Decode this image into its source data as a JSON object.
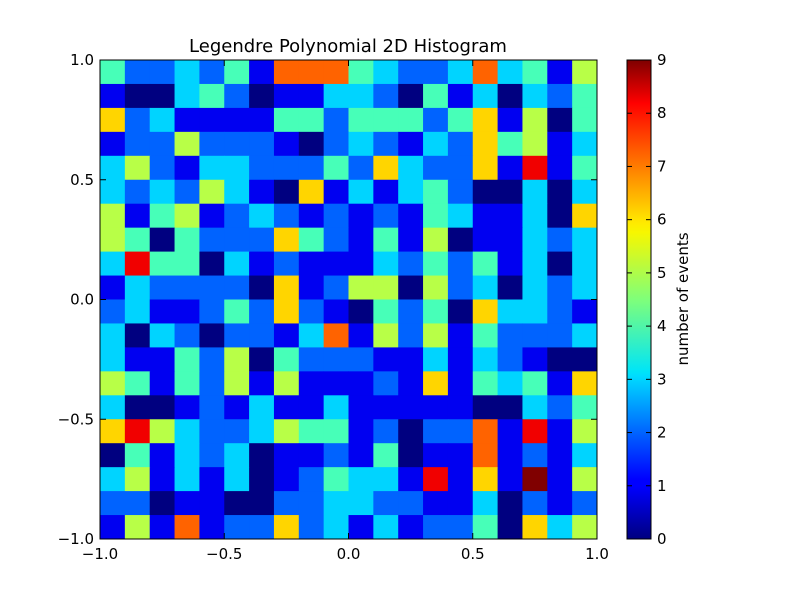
{
  "chart_data": {
    "type": "heatmap",
    "title": "Legendre Polynomial 2D Histogram",
    "xlabel": "",
    "ylabel": "",
    "xlim": [
      -1.0,
      1.0
    ],
    "ylim": [
      -1.0,
      1.0
    ],
    "x_ticks": [
      -1.0,
      -0.5,
      0.0,
      0.5,
      1.0
    ],
    "x_tick_labels": [
      "−1.0",
      "−0.5",
      "0.0",
      "0.5",
      "1.0"
    ],
    "y_ticks": [
      -1.0,
      -0.5,
      0.0,
      0.5,
      1.0
    ],
    "y_tick_labels": [
      "−1.0",
      "−0.5",
      "0.0",
      "0.5",
      "1.0"
    ],
    "bins": [
      20,
      20
    ],
    "colormap": "jet",
    "colorbar": {
      "label": "number of events",
      "range": [
        0,
        9
      ],
      "ticks": [
        0,
        1,
        2,
        3,
        4,
        5,
        6,
        7,
        8,
        9
      ],
      "tick_labels": [
        "0",
        "1",
        "2",
        "3",
        "4",
        "5",
        "6",
        "7",
        "8",
        "9"
      ]
    },
    "counts_row_order": "top-to-bottom (y from 1.0 down to -1.0), columns left-to-right (x from -1.0 to 1.0)",
    "counts": [
      [
        4,
        2,
        2,
        3,
        2,
        4,
        1,
        7,
        7,
        7,
        4,
        3,
        2,
        2,
        3,
        7,
        3,
        4,
        1,
        5
      ],
      [
        1,
        0,
        0,
        3,
        4,
        2,
        0,
        1,
        1,
        3,
        3,
        2,
        0,
        4,
        1,
        3,
        0,
        3,
        2,
        4
      ],
      [
        6,
        2,
        3,
        1,
        1,
        1,
        1,
        4,
        4,
        2,
        4,
        4,
        4,
        2,
        4,
        6,
        1,
        5,
        0,
        4
      ],
      [
        1,
        2,
        2,
        5,
        2,
        2,
        2,
        1,
        0,
        2,
        3,
        2,
        1,
        3,
        2,
        6,
        4,
        5,
        1,
        3
      ],
      [
        3,
        5,
        2,
        1,
        3,
        3,
        2,
        2,
        2,
        4,
        2,
        6,
        3,
        2,
        2,
        6,
        1,
        8,
        1,
        4
      ],
      [
        3,
        2,
        3,
        2,
        5,
        3,
        1,
        0,
        6,
        1,
        3,
        1,
        3,
        4,
        2,
        0,
        0,
        3,
        0,
        3
      ],
      [
        5,
        1,
        4,
        5,
        1,
        2,
        3,
        2,
        1,
        2,
        1,
        2,
        1,
        4,
        3,
        1,
        1,
        3,
        0,
        6
      ],
      [
        5,
        4,
        0,
        4,
        2,
        2,
        2,
        6,
        4,
        2,
        1,
        4,
        1,
        5,
        0,
        1,
        1,
        3,
        2,
        3
      ],
      [
        3,
        8,
        4,
        4,
        0,
        3,
        1,
        2,
        1,
        1,
        1,
        3,
        2,
        4,
        2,
        4,
        1,
        3,
        0,
        3
      ],
      [
        1,
        3,
        2,
        2,
        2,
        2,
        0,
        6,
        1,
        2,
        5,
        5,
        0,
        5,
        2,
        3,
        0,
        3,
        2,
        3
      ],
      [
        2,
        3,
        1,
        1,
        2,
        4,
        2,
        6,
        2,
        1,
        0,
        4,
        2,
        4,
        0,
        6,
        3,
        3,
        2,
        1
      ],
      [
        3,
        0,
        3,
        2,
        0,
        2,
        2,
        1,
        3,
        7,
        1,
        5,
        2,
        5,
        1,
        4,
        2,
        2,
        2,
        3
      ],
      [
        3,
        1,
        1,
        4,
        2,
        5,
        0,
        4,
        2,
        2,
        2,
        1,
        1,
        3,
        1,
        3,
        2,
        1,
        0,
        0
      ],
      [
        5,
        4,
        1,
        4,
        2,
        5,
        1,
        5,
        1,
        1,
        1,
        2,
        1,
        6,
        1,
        4,
        3,
        4,
        1,
        6
      ],
      [
        3,
        0,
        0,
        1,
        2,
        1,
        3,
        1,
        1,
        3,
        1,
        1,
        1,
        1,
        1,
        0,
        0,
        3,
        2,
        4
      ],
      [
        6,
        8,
        5,
        3,
        2,
        2,
        3,
        5,
        4,
        4,
        1,
        2,
        0,
        2,
        2,
        7,
        1,
        8,
        1,
        5
      ],
      [
        0,
        4,
        1,
        3,
        2,
        3,
        0,
        1,
        1,
        2,
        1,
        4,
        0,
        1,
        1,
        7,
        1,
        2,
        1,
        3
      ],
      [
        3,
        5,
        1,
        3,
        1,
        3,
        0,
        1,
        2,
        4,
        3,
        3,
        1,
        8,
        1,
        6,
        1,
        9,
        1,
        5
      ],
      [
        2,
        2,
        0,
        1,
        1,
        0,
        0,
        2,
        2,
        3,
        3,
        2,
        2,
        1,
        1,
        3,
        0,
        2,
        1,
        2
      ],
      [
        1,
        5,
        1,
        7,
        1,
        2,
        2,
        6,
        2,
        3,
        1,
        3,
        1,
        2,
        2,
        4,
        0,
        6,
        3,
        5
      ]
    ]
  }
}
